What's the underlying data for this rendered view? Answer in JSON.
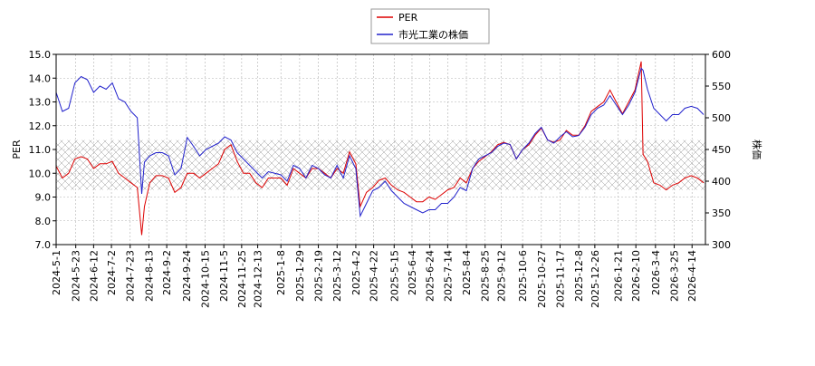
{
  "chart_data": {
    "type": "line",
    "x": [
      "2024-5-1",
      "2024-5-8",
      "2024-5-15",
      "2024-5-22",
      "2024-5-29",
      "2024-6-5",
      "2024-6-12",
      "2024-6-19",
      "2024-6-26",
      "2024-7-3",
      "2024-7-10",
      "2024-7-17",
      "2024-7-24",
      "2024-7-31",
      "2024-8-5",
      "2024-8-8",
      "2024-8-14",
      "2024-8-21",
      "2024-8-28",
      "2024-9-4",
      "2024-9-11",
      "2024-9-18",
      "2024-9-25",
      "2024-10-2",
      "2024-10-9",
      "2024-10-16",
      "2024-10-23",
      "2024-10-30",
      "2024-11-6",
      "2024-11-13",
      "2024-11-20",
      "2024-11-27",
      "2024-12-4",
      "2024-12-11",
      "2024-12-18",
      "2024-12-25",
      "2025-1-8",
      "2025-1-15",
      "2025-1-22",
      "2025-1-29",
      "2025-2-5",
      "2025-2-12",
      "2025-2-19",
      "2025-2-26",
      "2025-3-5",
      "2025-3-12",
      "2025-3-19",
      "2025-3-26",
      "2025-4-2",
      "2025-4-7",
      "2025-4-14",
      "2025-4-21",
      "2025-4-28",
      "2025-5-5",
      "2025-5-12",
      "2025-5-19",
      "2025-5-26",
      "2025-6-2",
      "2025-6-9",
      "2025-6-16",
      "2025-6-23",
      "2025-6-30",
      "2025-7-7",
      "2025-7-14",
      "2025-7-21",
      "2025-7-28",
      "2025-8-4",
      "2025-8-11",
      "2025-8-18",
      "2025-8-25",
      "2025-9-1",
      "2025-9-8",
      "2025-9-15",
      "2025-9-22",
      "2025-9-29",
      "2025-10-6",
      "2025-10-13",
      "2025-10-20",
      "2025-10-27",
      "2025-11-3",
      "2025-11-10",
      "2025-11-17",
      "2025-11-24",
      "2025-12-1",
      "2025-12-8",
      "2025-12-15",
      "2025-12-22",
      "2025-12-29",
      "2026-1-5",
      "2026-1-12",
      "2026-1-19",
      "2026-1-26",
      "2026-2-2",
      "2026-2-9",
      "2026-2-16",
      "2026-2-18",
      "2026-2-23",
      "2026-3-2",
      "2026-3-9",
      "2026-3-16",
      "2026-3-23",
      "2026-3-30",
      "2026-4-6",
      "2026-4-13",
      "2026-4-20",
      "2026-4-27"
    ],
    "series": [
      {
        "name": "PER",
        "color": "#dd0000",
        "axis": "y",
        "values": [
          10.3,
          9.8,
          10.0,
          10.6,
          10.7,
          10.6,
          10.2,
          10.4,
          10.4,
          10.5,
          10.0,
          9.8,
          9.6,
          9.4,
          7.4,
          8.6,
          9.6,
          9.9,
          9.9,
          9.8,
          9.2,
          9.4,
          10.0,
          10.0,
          9.8,
          10.0,
          10.2,
          10.4,
          11.0,
          11.2,
          10.5,
          10.0,
          10.0,
          9.6,
          9.4,
          9.8,
          9.8,
          9.5,
          10.2,
          10.0,
          9.8,
          10.2,
          10.2,
          10.0,
          9.8,
          10.2,
          10.0,
          10.9,
          10.4,
          8.6,
          9.2,
          9.4,
          9.7,
          9.8,
          9.5,
          9.3,
          9.2,
          9.0,
          8.8,
          8.8,
          9.0,
          8.9,
          9.1,
          9.3,
          9.4,
          9.8,
          9.6,
          10.2,
          10.5,
          10.7,
          10.9,
          11.2,
          11.3,
          11.2,
          10.6,
          11.0,
          11.2,
          11.6,
          11.9,
          11.4,
          11.3,
          11.4,
          11.8,
          11.6,
          11.6,
          12.0,
          12.6,
          12.8,
          13.0,
          13.5,
          13.0,
          12.5,
          13.0,
          13.5,
          14.7,
          10.8,
          10.5,
          9.6,
          9.5,
          9.3,
          9.5,
          9.6,
          9.8,
          9.9,
          9.8,
          9.6
        ]
      },
      {
        "name": "市光工業の株価",
        "color": "#2222cc",
        "axis": "y2",
        "values": [
          540,
          510,
          515,
          555,
          565,
          560,
          540,
          550,
          545,
          555,
          530,
          525,
          510,
          500,
          380,
          430,
          440,
          445,
          445,
          440,
          410,
          420,
          469,
          455,
          440,
          450,
          455,
          460,
          470,
          465,
          445,
          435,
          425,
          415,
          405,
          415,
          410,
          400,
          425,
          420,
          405,
          425,
          420,
          410,
          405,
          425,
          405,
          440,
          420,
          345,
          365,
          385,
          390,
          400,
          385,
          375,
          365,
          360,
          355,
          350,
          355,
          355,
          365,
          365,
          375,
          390,
          385,
          420,
          435,
          440,
          445,
          455,
          460,
          458,
          435,
          450,
          460,
          475,
          485,
          465,
          460,
          470,
          478,
          470,
          472,
          485,
          505,
          515,
          520,
          535,
          520,
          505,
          520,
          540,
          578,
          575,
          545,
          515,
          505,
          495,
          505,
          505,
          515,
          518,
          515,
          505
        ]
      }
    ],
    "xlim": [
      "2024-5-1",
      "2026-4-29"
    ],
    "xticks": [
      "2024-5-1",
      "2024-5-23",
      "2024-6-12",
      "2024-7-2",
      "2024-7-23",
      "2024-8-13",
      "2024-9-2",
      "2024-9-24",
      "2024-10-15",
      "2024-11-5",
      "2024-11-25",
      "2024-12-13",
      "2025-1-8",
      "2025-1-29",
      "2025-2-19",
      "2025-3-12",
      "2025-4-2",
      "2025-4-22",
      "2025-5-15",
      "2025-6-4",
      "2025-6-24",
      "2025-7-14",
      "2025-8-4",
      "2025-8-25",
      "2025-9-12",
      "2025-10-6",
      "2025-10-27",
      "2025-11-17",
      "2025-12-8",
      "2025-12-26",
      "2026-1-21",
      "2026-2-10",
      "2026-3-4",
      "2026-3-25",
      "2026-4-14"
    ],
    "ylim": [
      7,
      15
    ],
    "yticks": [
      {
        "value": 7,
        "label": "7.0"
      },
      {
        "value": 8,
        "label": "8.0"
      },
      {
        "value": 9,
        "label": "9.0"
      },
      {
        "value": 10,
        "label": "10.0"
      },
      {
        "value": 11,
        "label": "11.0"
      },
      {
        "value": 12,
        "label": "12.0"
      },
      {
        "value": 13,
        "label": "13.0"
      },
      {
        "value": 14,
        "label": "14.0"
      },
      {
        "value": 15,
        "label": "15.0"
      }
    ],
    "y2lim": [
      300,
      600
    ],
    "y2ticks": [
      300,
      350,
      400,
      450,
      500,
      550,
      600
    ],
    "ylabel": "PER",
    "y2label": "株価",
    "shaded_range": [
      9.3,
      11.4
    ],
    "grid": true
  }
}
